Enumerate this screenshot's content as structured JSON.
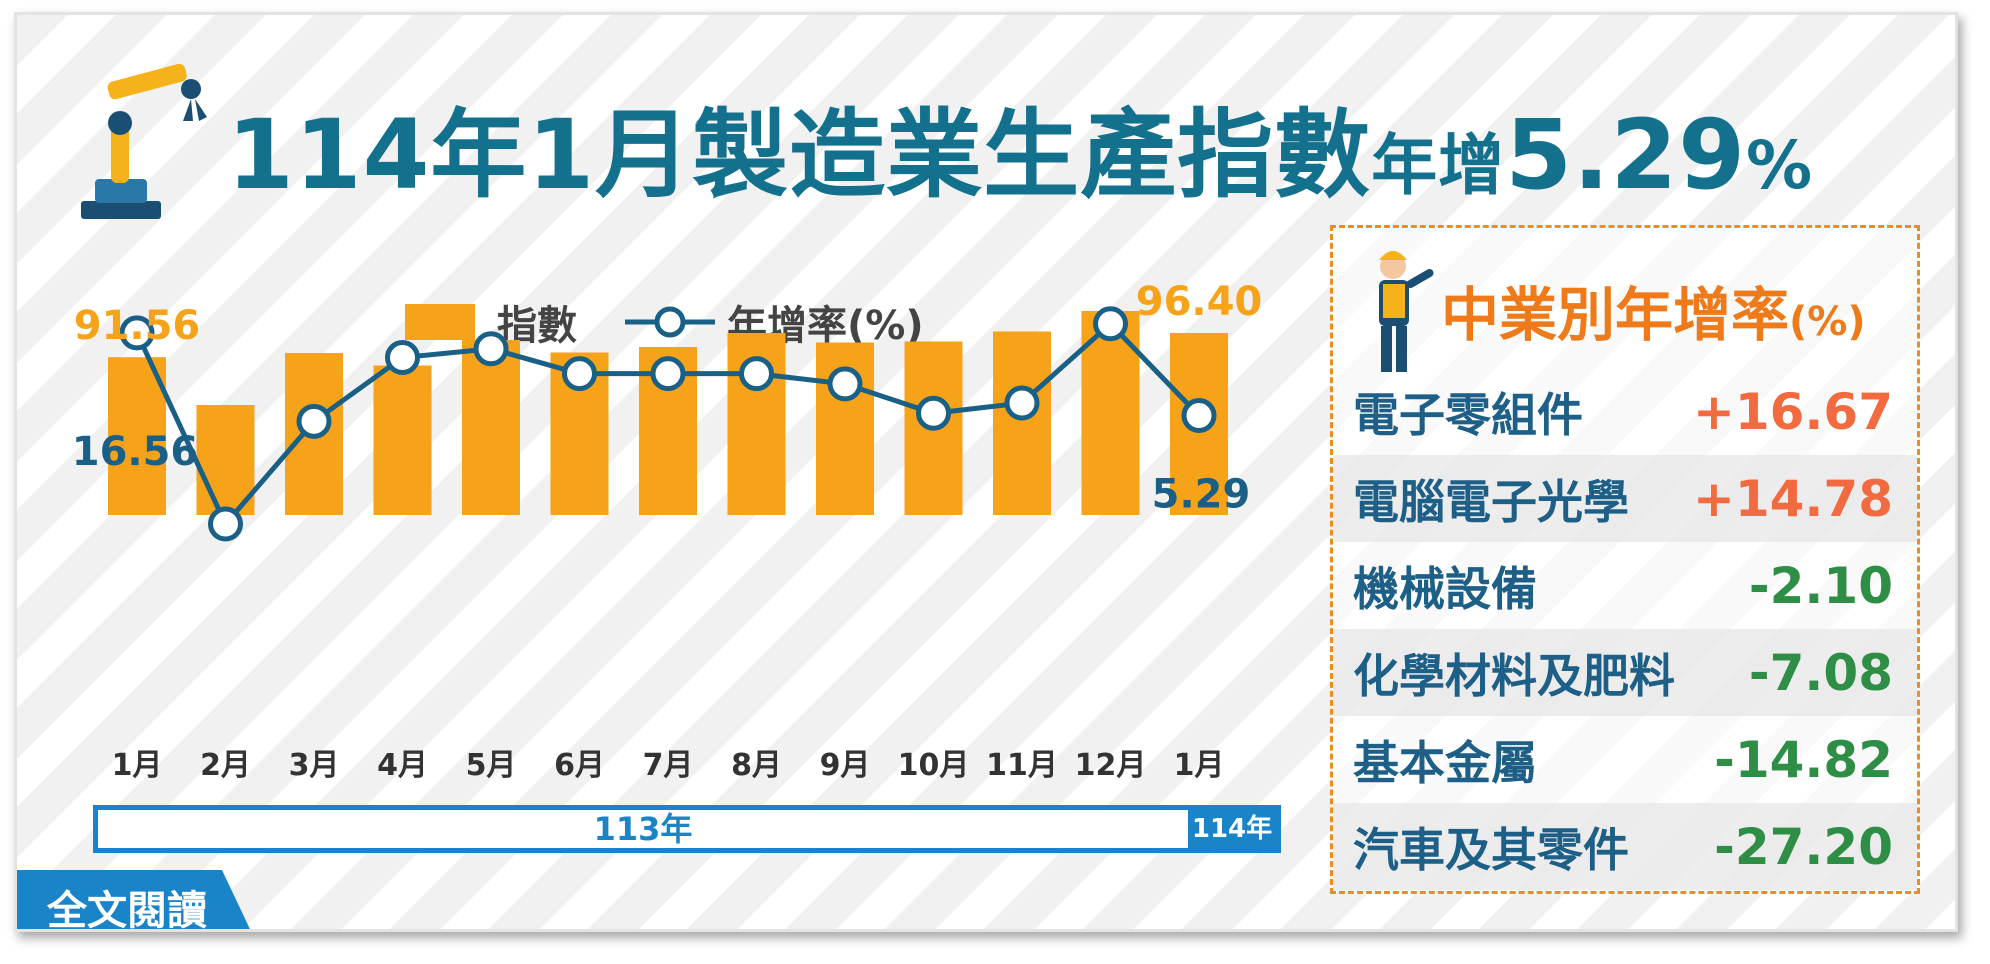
{
  "title": {
    "prefix": "114年1月製造業生產指數",
    "mid": "年增",
    "value": "5.29",
    "unit": "%"
  },
  "legend": {
    "bar_label": "指數",
    "line_label": "年增率(%)"
  },
  "colors": {
    "bar": "#f6a31a",
    "line": "#1a5f85",
    "title": "#14718e",
    "accent": "#1a84c8",
    "positive": "#f26a3f",
    "negative": "#2e8e46",
    "panel_border": "#f08c1e"
  },
  "years": {
    "y113": "113年",
    "y114": "114年"
  },
  "read_button": "全文閱讀",
  "panel": {
    "title": "中業別年增率",
    "unit": "(%)",
    "rows": [
      {
        "name": "電子零組件",
        "value": "+16.67"
      },
      {
        "name": "電腦電子光學",
        "value": "+14.78"
      },
      {
        "name": "機械設備",
        "value": "-2.10"
      },
      {
        "name": "化學材料及肥料",
        "value": "-7.08"
      },
      {
        "name": "基本金屬",
        "value": "-14.82"
      },
      {
        "name": "汽車及其零件",
        "value": "-27.20"
      }
    ]
  },
  "chart_data": {
    "type": "bar+line",
    "categories": [
      "1月",
      "2月",
      "3月",
      "4月",
      "5月",
      "6月",
      "7月",
      "8月",
      "9月",
      "10月",
      "11月",
      "12月",
      "1月"
    ],
    "series": [
      {
        "name": "指數",
        "type": "bar",
        "values": [
          91.56,
          82.0,
          92.4,
          89.9,
          95.0,
          92.5,
          93.6,
          96.4,
          94.5,
          94.7,
          96.7,
          100.8,
          96.4
        ]
      },
      {
        "name": "年增率(%)",
        "type": "line",
        "values": [
          16.56,
          -9.5,
          4.5,
          13.2,
          14.4,
          11.0,
          11.0,
          11.0,
          9.6,
          5.6,
          7.0,
          17.8,
          5.29
        ]
      }
    ],
    "data_labels": [
      {
        "series": "指數",
        "index": 0,
        "text": "91.56"
      },
      {
        "series": "年增率(%)",
        "index": 0,
        "text": "16.56"
      },
      {
        "series": "指數",
        "index": 12,
        "text": "96.40"
      },
      {
        "series": "年增率(%)",
        "index": 12,
        "text": "5.29"
      }
    ],
    "grid": false
  }
}
